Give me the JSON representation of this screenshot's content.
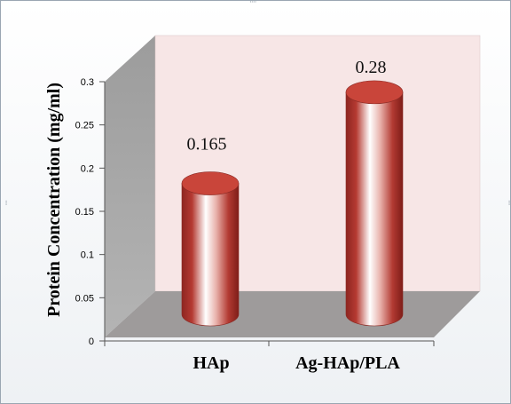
{
  "chart_data": {
    "type": "bar",
    "style": "3d-cylinder",
    "categories": [
      "HAp",
      "Ag-HAp/PLA"
    ],
    "values": [
      0.165,
      0.28
    ],
    "data_labels": [
      "0.165",
      "0.28"
    ],
    "title": "",
    "xlabel": "",
    "ylabel": "Protein Concentration (mg/ml)",
    "ylim": [
      0,
      0.3
    ],
    "yticks": [
      "0",
      "0.05",
      "0.1",
      "0.15",
      "0.2",
      "0.25",
      "0.3"
    ],
    "grid": false,
    "legend": "none",
    "colors": {
      "bar": "#b23a32",
      "bar_highlight": "#ffffff",
      "bar_top": "#c9453a",
      "back_wall": "#f7e6e6",
      "side_wall": "#a8a8a8",
      "floor": "#9e9b9b"
    }
  }
}
